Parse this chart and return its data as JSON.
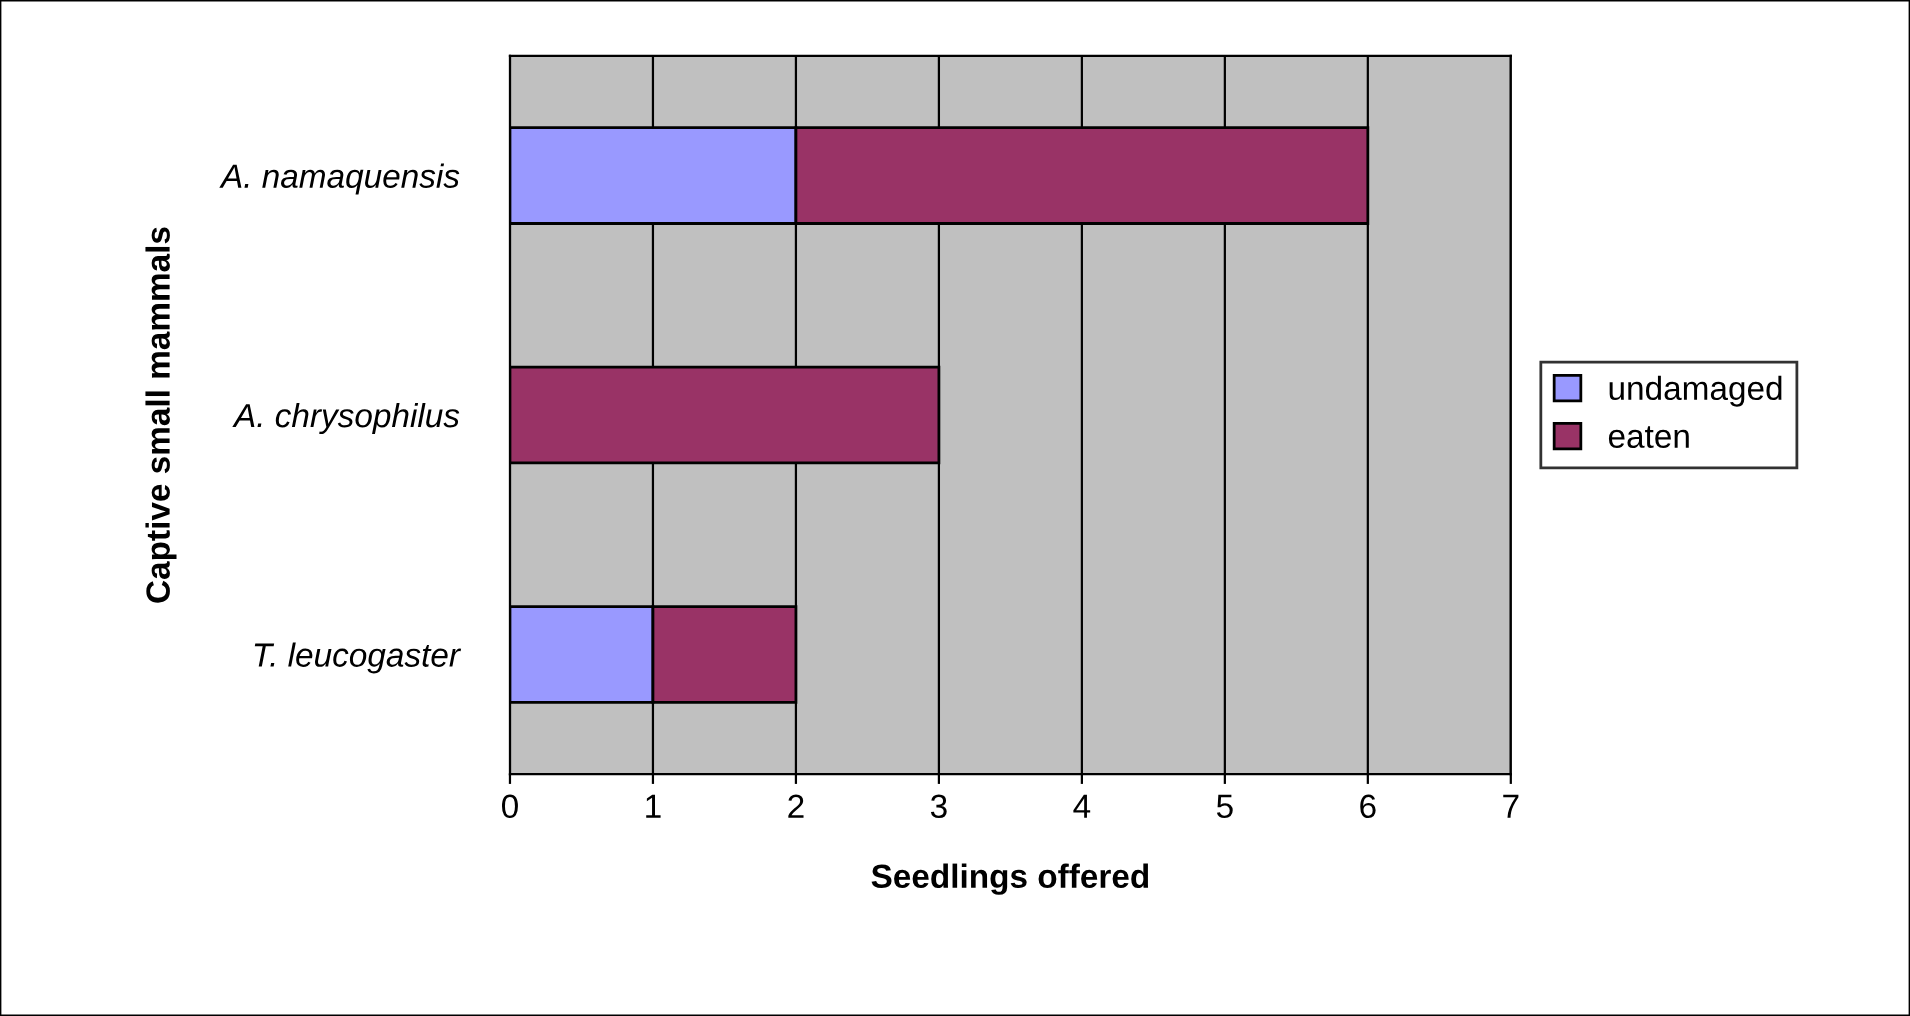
{
  "chart_data": {
    "type": "bar",
    "orientation": "horizontal",
    "stacked": true,
    "xlabel": "Seedlings offered",
    "ylabel": "Captive small mammals",
    "categories": [
      "A. namaquensis",
      "A. chrysophilus",
      "T. leucogaster"
    ],
    "series": [
      {
        "name": "undamaged",
        "color": "#9999ff",
        "values": [
          2,
          0,
          1
        ]
      },
      {
        "name": "eaten",
        "color": "#993366",
        "values": [
          4,
          3,
          1
        ]
      }
    ],
    "xlim": [
      0,
      7
    ],
    "xticks": [
      0,
      1,
      2,
      3,
      4,
      5,
      6,
      7
    ],
    "grid": "x",
    "legend": "right"
  }
}
